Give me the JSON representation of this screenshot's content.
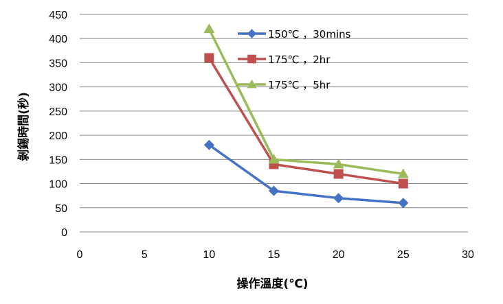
{
  "chart_data": {
    "type": "line",
    "title": "",
    "xlabel": "操作溫度(℃)",
    "ylabel": "剝錫時間(秒)",
    "xlim": [
      0,
      30
    ],
    "ylim": [
      0,
      450
    ],
    "xticks": [
      0,
      5,
      10,
      15,
      20,
      25,
      30
    ],
    "yticks": [
      0,
      50,
      100,
      150,
      200,
      250,
      300,
      350,
      400,
      450
    ],
    "grid": "horizontal",
    "legend_position": "top-right",
    "series": [
      {
        "name": "150℃ ，30mins",
        "color": "#4472C4",
        "marker": "diamond",
        "x": [
          10,
          15,
          20,
          25
        ],
        "y": [
          180,
          85,
          70,
          60
        ]
      },
      {
        "name": "175℃ ，2hr",
        "color": "#C0504D",
        "marker": "square",
        "x": [
          10,
          15,
          20,
          25
        ],
        "y": [
          360,
          140,
          120,
          100
        ]
      },
      {
        "name": "175℃ ，5hr",
        "color": "#9BBB59",
        "marker": "triangle",
        "x": [
          10,
          15,
          20,
          25
        ],
        "y": [
          420,
          150,
          140,
          120
        ]
      }
    ]
  }
}
